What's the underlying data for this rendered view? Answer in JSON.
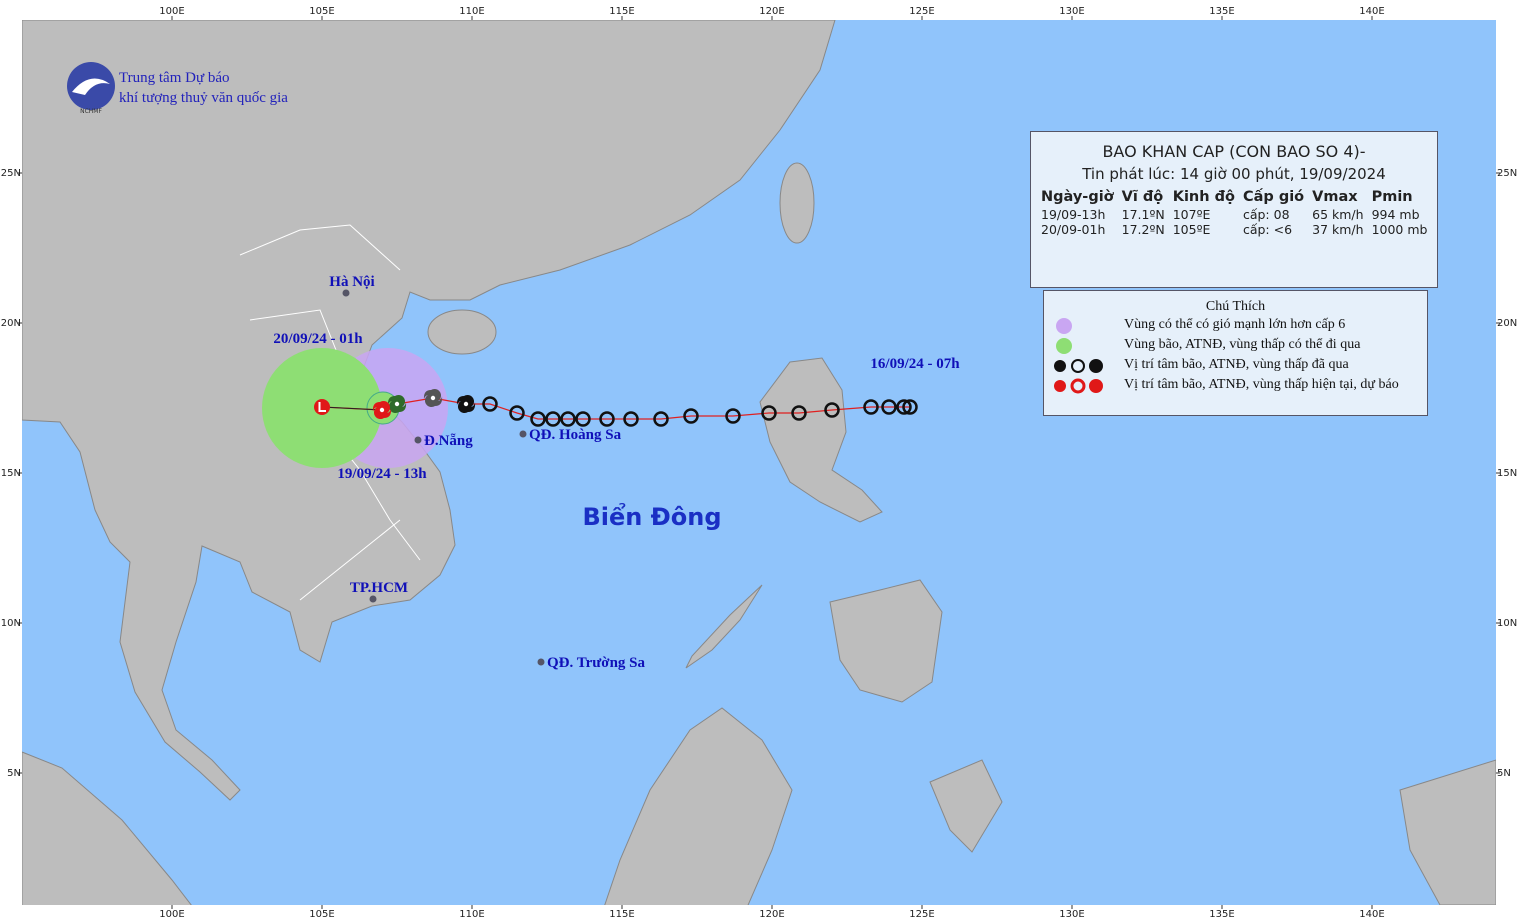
{
  "logo": {
    "abbr": "NCHMF",
    "line1": "Trung tâm Dự báo",
    "line2": "khí tượng thuỷ văn quốc gia"
  },
  "map": {
    "sea_label": "Biển Đông",
    "lon_ticks": [
      {
        "value": 100,
        "label": "100E"
      },
      {
        "value": 105,
        "label": "105E"
      },
      {
        "value": 110,
        "label": "110E"
      },
      {
        "value": 115,
        "label": "115E"
      },
      {
        "value": 120,
        "label": "120E"
      },
      {
        "value": 125,
        "label": "125E"
      },
      {
        "value": 130,
        "label": "130E"
      },
      {
        "value": 135,
        "label": "135E"
      },
      {
        "value": 140,
        "label": "140E"
      }
    ],
    "lat_ticks": [
      {
        "value": 25,
        "label": "25N"
      },
      {
        "value": 20,
        "label": "20N"
      },
      {
        "value": 15,
        "label": "15N"
      },
      {
        "value": 10,
        "label": "10N"
      },
      {
        "value": 5,
        "label": "5N"
      }
    ],
    "places": [
      {
        "label": "Hà Nội",
        "lon": 105.8,
        "lat": 21.0
      },
      {
        "label": "Đ.Nẵng",
        "lon": 108.2,
        "lat": 16.1
      },
      {
        "label": "QĐ. Hoàng Sa",
        "lon": 111.7,
        "lat": 16.3
      },
      {
        "label": "TP.HCM",
        "lon": 106.7,
        "lat": 10.8
      },
      {
        "label": "QĐ. Trường Sa",
        "lon": 112.3,
        "lat": 8.7
      }
    ]
  },
  "track": {
    "start_label": "16/09/24 - 07h",
    "current_label": "19/09/24 - 13h",
    "forecast_label": "20/09/24 - 01h",
    "past_lon": [
      124.6,
      124.4,
      123.9,
      123.3,
      122.0,
      120.9,
      119.9,
      118.7,
      117.3,
      116.3,
      115.3,
      114.5,
      113.7,
      113.2,
      112.7,
      112.2,
      111.5,
      110.6,
      109.8,
      108.7,
      107.5
    ],
    "past_lat": [
      17.2,
      17.2,
      17.2,
      17.2,
      17.1,
      17.0,
      17.0,
      16.9,
      16.9,
      16.8,
      16.8,
      16.8,
      16.8,
      16.8,
      16.8,
      16.8,
      17.0,
      17.3,
      17.3,
      17.5,
      17.3
    ],
    "current": {
      "lon": 107,
      "lat": 17.1
    },
    "forecast": {
      "lon": 105,
      "lat": 17.2
    }
  },
  "info": {
    "title": "BAO  KHAN CAP (CON BAO SO 4)-",
    "issued": "Tin phát lúc: 14 giờ 00 phút, 19/09/2024",
    "headers": [
      "Ngày-giờ",
      "Vĩ độ",
      "Kinh độ",
      "Cấp gió",
      "Vmax",
      "Pmin"
    ],
    "rows": [
      [
        "19/09-13h",
        "17.1ºN",
        "107ºE",
        "cấp: 08",
        "65 km/h",
        "994 mb"
      ],
      [
        "20/09-01h",
        "17.2ºN",
        "105ºE",
        "cấp: <6",
        "37 km/h",
        "1000 mb"
      ]
    ]
  },
  "legend": {
    "title": "Chú Thích",
    "entries": [
      "Vùng có thể có gió mạnh lớn hơn cấp 6",
      "Vùng bão, ATNĐ, vùng thấp có thể đi qua",
      "Vị trí tâm bão, ATNĐ, vùng thấp đã qua",
      "Vị trí tâm bão, ATNĐ, vùng thấp hiện tại, dự báo"
    ]
  }
}
